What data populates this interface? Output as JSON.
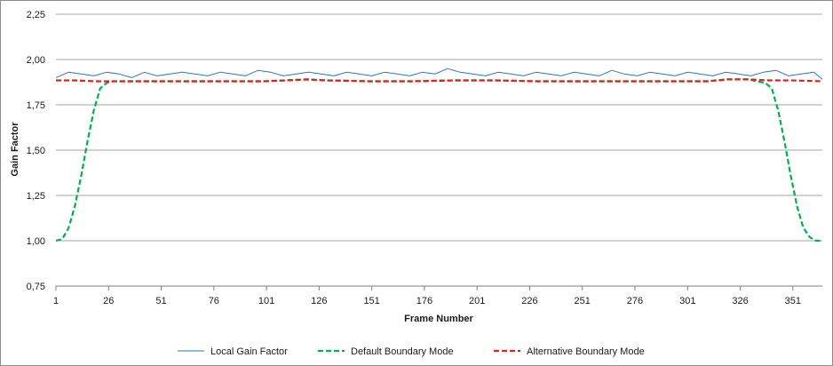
{
  "chart_data": {
    "type": "line",
    "xlabel": "Frame Number",
    "ylabel": "Gain Factor",
    "xlim": [
      1,
      365
    ],
    "ylim": [
      0.75,
      2.25
    ],
    "x_ticks": [
      1,
      26,
      51,
      76,
      101,
      126,
      151,
      176,
      201,
      226,
      251,
      276,
      301,
      326,
      351
    ],
    "y_ticks": [
      "0,75",
      "1,00",
      "1,25",
      "1,50",
      "1,75",
      "2,00",
      "2,25"
    ],
    "grid": true,
    "legend_position": "bottom",
    "series": [
      {
        "name": "Local Gain Factor",
        "color": "#2e75b6",
        "style": "solid",
        "x": [
          1,
          7,
          13,
          19,
          25,
          31,
          37,
          43,
          49,
          55,
          61,
          67,
          73,
          79,
          85,
          91,
          97,
          103,
          109,
          115,
          121,
          127,
          133,
          139,
          145,
          151,
          157,
          163,
          169,
          175,
          181,
          187,
          193,
          199,
          205,
          211,
          217,
          223,
          229,
          235,
          241,
          247,
          253,
          259,
          265,
          271,
          277,
          283,
          289,
          295,
          301,
          307,
          313,
          319,
          325,
          331,
          337,
          343,
          349,
          355,
          361,
          365
        ],
        "values": [
          1.9,
          1.93,
          1.92,
          1.91,
          1.93,
          1.92,
          1.9,
          1.93,
          1.91,
          1.92,
          1.93,
          1.92,
          1.91,
          1.93,
          1.92,
          1.91,
          1.94,
          1.93,
          1.91,
          1.92,
          1.93,
          1.92,
          1.91,
          1.93,
          1.92,
          1.91,
          1.93,
          1.92,
          1.91,
          1.93,
          1.92,
          1.95,
          1.93,
          1.92,
          1.91,
          1.93,
          1.92,
          1.91,
          1.93,
          1.92,
          1.91,
          1.93,
          1.92,
          1.91,
          1.94,
          1.92,
          1.91,
          1.93,
          1.92,
          1.91,
          1.93,
          1.92,
          1.91,
          1.93,
          1.92,
          1.91,
          1.93,
          1.94,
          1.91,
          1.92,
          1.93,
          1.89
        ]
      },
      {
        "name": "Default Boundary Mode",
        "color": "#00b050",
        "style": "dashed",
        "x": [
          1,
          4,
          7,
          10,
          13,
          16,
          19,
          22,
          25,
          28,
          40,
          60,
          80,
          100,
          110,
          120,
          130,
          150,
          170,
          190,
          210,
          230,
          250,
          270,
          290,
          310,
          320,
          330,
          338,
          341,
          344,
          347,
          350,
          353,
          356,
          359,
          362,
          365
        ],
        "values": [
          1.0,
          1.01,
          1.07,
          1.19,
          1.36,
          1.55,
          1.72,
          1.84,
          1.87,
          1.88,
          1.88,
          1.88,
          1.88,
          1.88,
          1.885,
          1.89,
          1.885,
          1.88,
          1.88,
          1.885,
          1.885,
          1.88,
          1.88,
          1.88,
          1.88,
          1.88,
          1.89,
          1.89,
          1.87,
          1.84,
          1.72,
          1.55,
          1.36,
          1.19,
          1.07,
          1.02,
          1.0,
          1.0
        ]
      },
      {
        "name": "Alternative Boundary Mode",
        "color": "#e3211c",
        "style": "dashed",
        "x": [
          1,
          10,
          20,
          30,
          40,
          60,
          80,
          100,
          110,
          120,
          130,
          150,
          170,
          190,
          210,
          230,
          250,
          270,
          290,
          310,
          320,
          330,
          340,
          350,
          365
        ],
        "values": [
          1.885,
          1.885,
          1.88,
          1.88,
          1.88,
          1.88,
          1.88,
          1.88,
          1.885,
          1.89,
          1.885,
          1.88,
          1.88,
          1.885,
          1.885,
          1.88,
          1.88,
          1.88,
          1.88,
          1.88,
          1.89,
          1.89,
          1.885,
          1.885,
          1.88
        ]
      }
    ]
  }
}
